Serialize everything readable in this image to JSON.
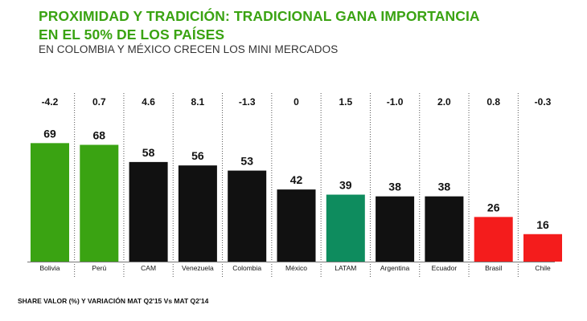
{
  "title_line1": "PROXIMIDAD Y TRADICIÓN: TRADICIONAL GANA IMPORTANCIA",
  "title_line2": "EN EL 50% DE LOS PAÍSES",
  "subtitle": "EN COLOMBIA  Y MÉXICO CRECEN LOS MINI MERCADOS",
  "footnote": "SHARE VALOR (%) Y VARIACIÓN MAT Q2'15 Vs MAT Q2'14",
  "chart_data": {
    "type": "bar",
    "categories": [
      "Bolivia",
      "Perú",
      "CAM",
      "Venezuela",
      "Colombia",
      "México",
      "LATAM",
      "Argentina",
      "Ecuador",
      "Brasil",
      "Chile"
    ],
    "values": [
      69,
      68,
      58,
      56,
      53,
      42,
      39,
      38,
      38,
      26,
      16
    ],
    "variations": [
      "-4.2",
      "0.7",
      "4.6",
      "8.1",
      "-1.3",
      "0",
      "1.5",
      "-1.0",
      "2.0",
      "0.8",
      "-0.3"
    ],
    "colors": [
      "#3aa312",
      "#3aa312",
      "#111111",
      "#111111",
      "#111111",
      "#111111",
      "#0e8c5e",
      "#111111",
      "#111111",
      "#f41c1c",
      "#f41c1c"
    ],
    "ylim": [
      0,
      80
    ],
    "grid": false,
    "legend": "none"
  }
}
